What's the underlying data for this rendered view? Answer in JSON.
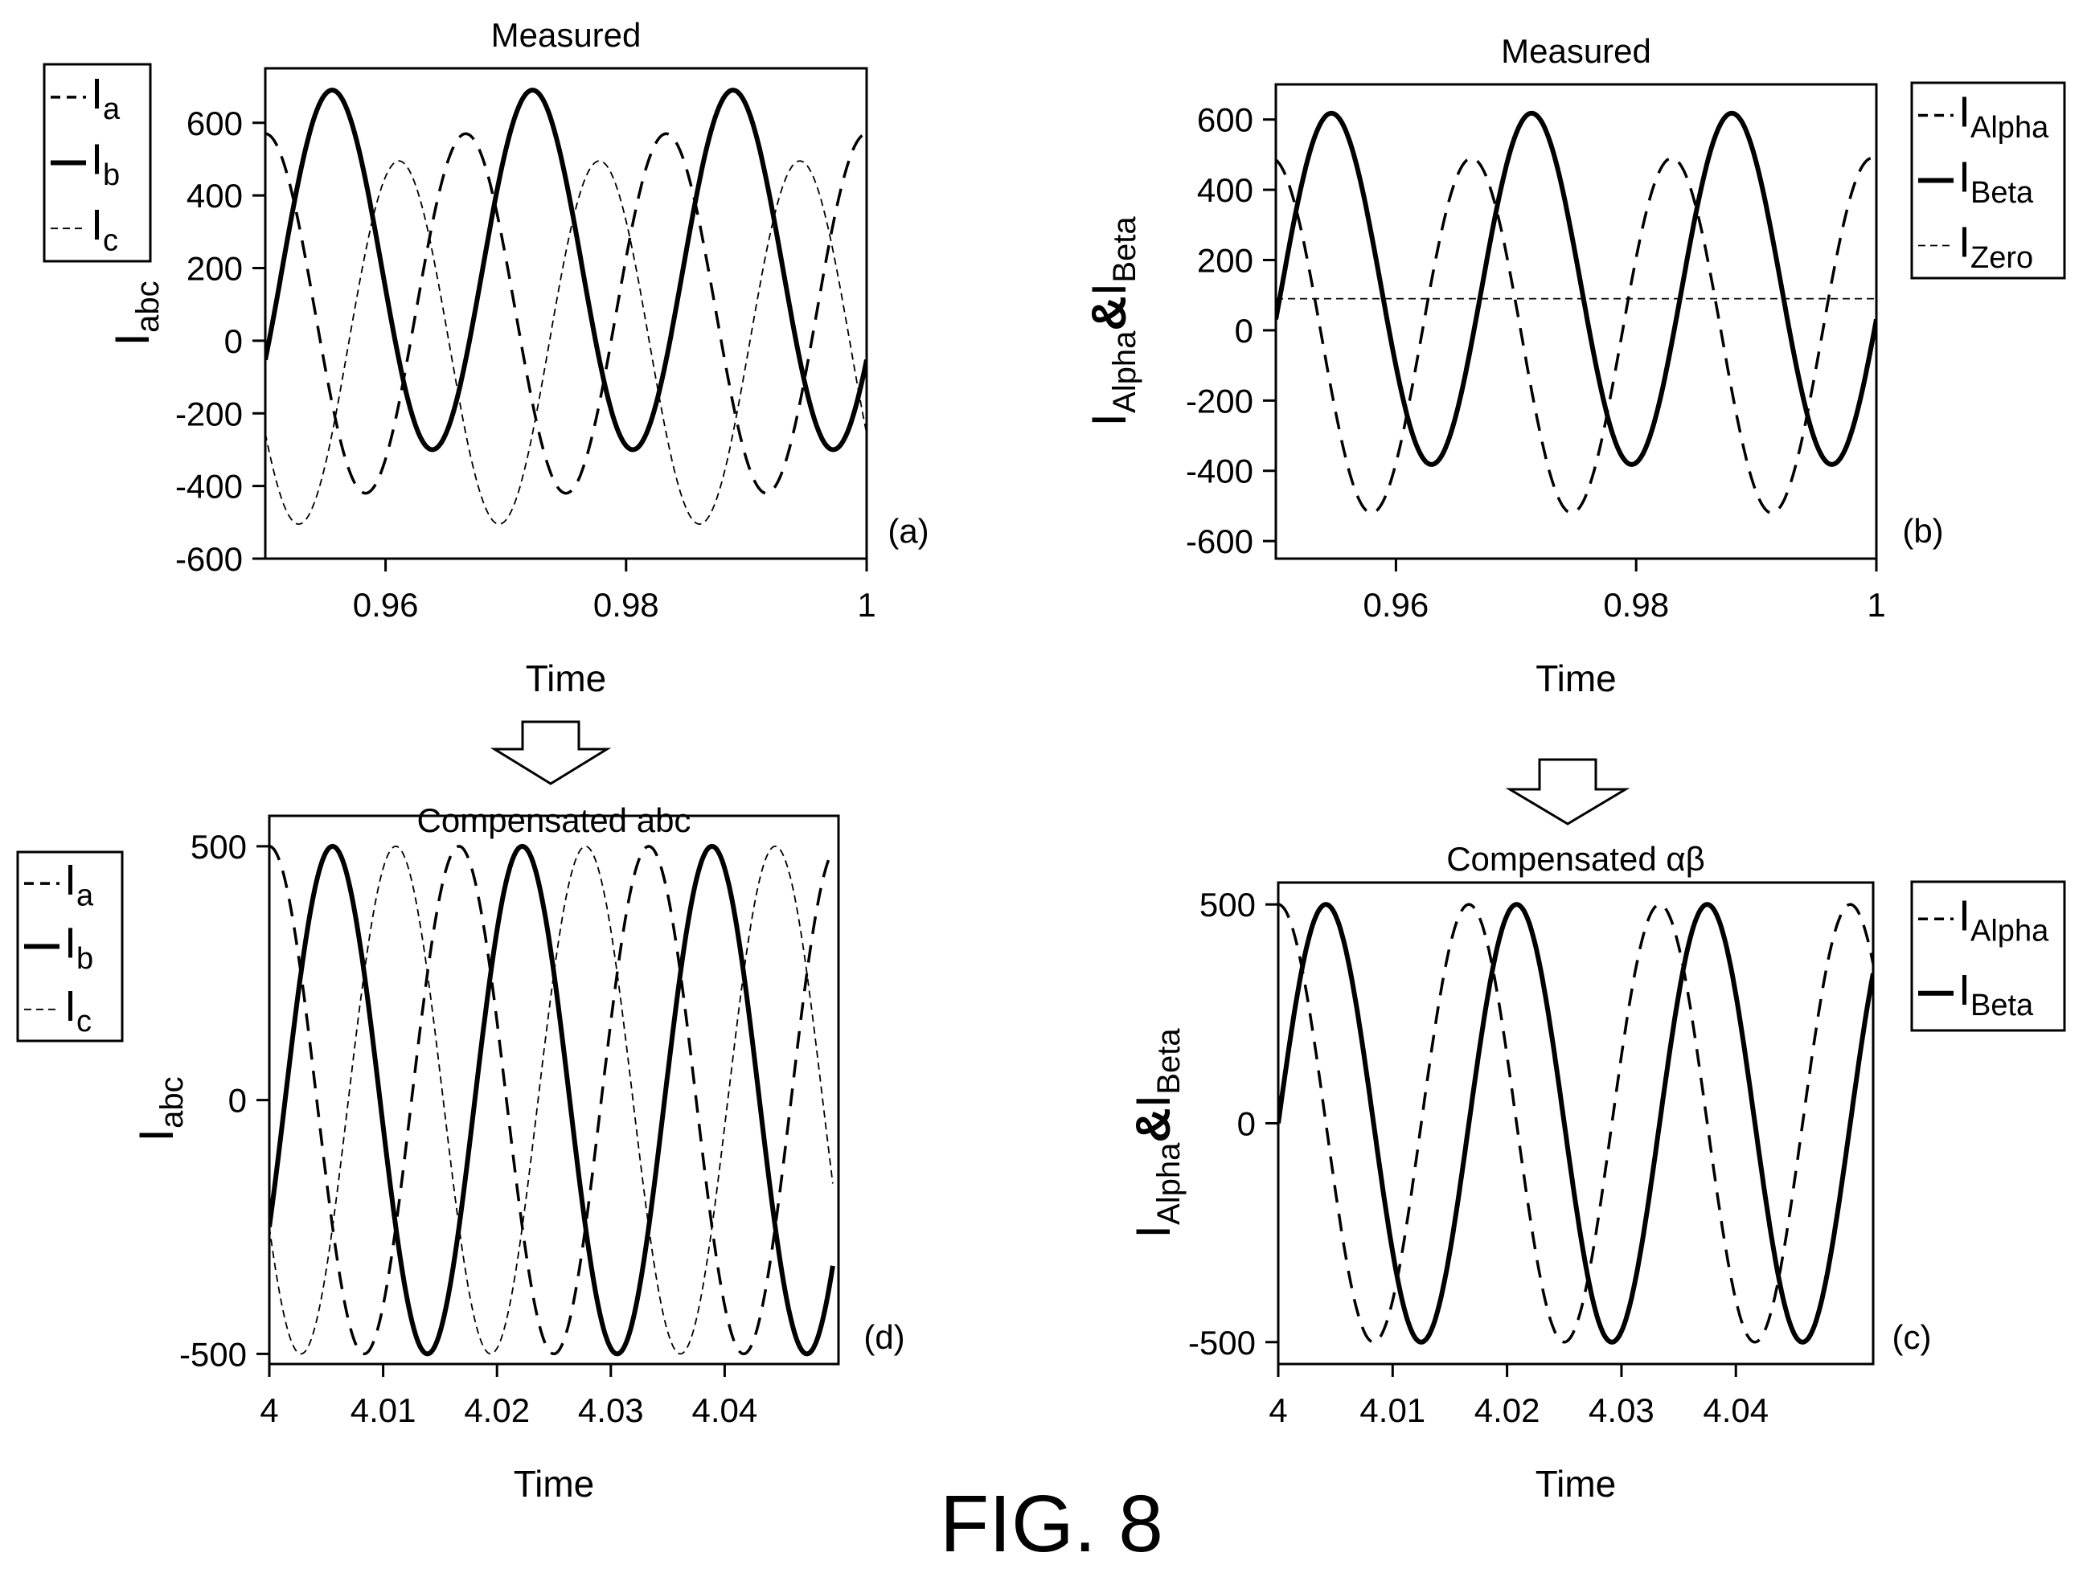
{
  "figure": {
    "caption": "FIG. 8"
  },
  "chart_data": [
    {
      "id": "a",
      "type": "line",
      "panel_label": "(a)",
      "title": "Measured",
      "xlabel": "Time",
      "ylabel": {
        "base": "I",
        "sub": "abc"
      },
      "xlim": [
        0.95,
        1.0
      ],
      "ylim": [
        -600,
        750
      ],
      "xticks": [
        0.96,
        0.98,
        1
      ],
      "xtick_labels": [
        "0.96",
        "0.98",
        "1"
      ],
      "yticks": [
        -600,
        -400,
        -200,
        0,
        200,
        400,
        600
      ],
      "ytick_labels": [
        "-600",
        "-400",
        "-200",
        "0",
        "200",
        "400",
        "600"
      ],
      "grid": false,
      "legend_position": "outside-left",
      "frequency_hz": 60,
      "series": [
        {
          "name": {
            "base": "I",
            "sub": "a"
          },
          "style": "dashed",
          "amplitude": 495,
          "offset": 75,
          "phase_deg": 0,
          "x_start": 0.95,
          "x_end": 1.0
        },
        {
          "name": {
            "base": "I",
            "sub": "b"
          },
          "style": "solid",
          "amplitude": 495,
          "offset": 195,
          "phase_deg": -120,
          "x_start": 0.95,
          "x_end": 1.0
        },
        {
          "name": {
            "base": "I",
            "sub": "c"
          },
          "style": "thin-dashed",
          "amplitude": 500,
          "offset": -5,
          "phase_deg": 120,
          "x_start": 0.95,
          "x_end": 1.0
        }
      ]
    },
    {
      "id": "b",
      "type": "line",
      "panel_label": "(b)",
      "title": "Measured",
      "xlabel": "Time",
      "ylabel": {
        "base1": "I",
        "sub1": "Alpha",
        "amp": "&",
        "base2": "I",
        "sub2": "Beta"
      },
      "xlim": [
        0.95,
        1.0
      ],
      "ylim": [
        -650,
        700
      ],
      "xticks": [
        0.96,
        0.98,
        1
      ],
      "xtick_labels": [
        "0.96",
        "0.98",
        "1"
      ],
      "yticks": [
        -600,
        -400,
        -200,
        0,
        200,
        400,
        600
      ],
      "ytick_labels": [
        "-600",
        "-400",
        "-200",
        "0",
        "200",
        "400",
        "600"
      ],
      "grid": false,
      "legend_position": "outside-right",
      "frequency_hz": 60,
      "series": [
        {
          "name": {
            "base": "I",
            "sub": "Alpha"
          },
          "style": "dashed",
          "amplitude": 505,
          "offset": -15,
          "phase_deg": 8,
          "x_start": 0.95,
          "x_end": 1.0
        },
        {
          "name": {
            "base": "I",
            "sub": "Beta"
          },
          "style": "solid",
          "amplitude": 500,
          "offset": 118,
          "phase_deg": -100,
          "x_start": 0.95,
          "x_end": 1.0
        },
        {
          "name": {
            "base": "I",
            "sub": "Zero"
          },
          "style": "thin-dashed",
          "amplitude": 0,
          "offset": 90,
          "phase_deg": 0,
          "x_start": 0.95,
          "x_end": 1.0
        }
      ]
    },
    {
      "id": "d",
      "type": "line",
      "panel_label": "(d)",
      "title": "Compensated abc",
      "xlabel": "Time",
      "ylabel": {
        "base": "I",
        "sub": "abc"
      },
      "xlim": [
        4.0,
        4.05
      ],
      "ylim": [
        -520,
        560
      ],
      "xticks": [
        4,
        4.01,
        4.02,
        4.03,
        4.04
      ],
      "xtick_labels": [
        "4",
        "4.01",
        "4.02",
        "4.03",
        "4.04"
      ],
      "yticks": [
        -500,
        0,
        500
      ],
      "ytick_labels": [
        "-500",
        "0",
        "500"
      ],
      "grid": false,
      "legend_position": "outside-left",
      "frequency_hz": 60,
      "series": [
        {
          "name": {
            "base": "I",
            "sub": "a"
          },
          "style": "dashed",
          "amplitude": 500,
          "offset": 0,
          "phase_deg": 0,
          "x_start": 4.0,
          "x_end": 4.0495
        },
        {
          "name": {
            "base": "I",
            "sub": "b"
          },
          "style": "solid",
          "amplitude": 500,
          "offset": 0,
          "phase_deg": -120,
          "x_start": 4.0,
          "x_end": 4.0495
        },
        {
          "name": {
            "base": "I",
            "sub": "c"
          },
          "style": "thin-dashed",
          "amplitude": 500,
          "offset": 0,
          "phase_deg": 120,
          "x_start": 4.0,
          "x_end": 4.0495
        }
      ]
    },
    {
      "id": "c",
      "type": "line",
      "panel_label": "(c)",
      "title": "Compensated αβ",
      "xlabel": "Time",
      "ylabel": {
        "base1": "I",
        "sub1": "Alpha",
        "amp": "&",
        "base2": "I",
        "sub2": "Beta"
      },
      "xlim": [
        4.0,
        4.052
      ],
      "ylim": [
        -550,
        550
      ],
      "xticks": [
        4,
        4.01,
        4.02,
        4.03,
        4.04
      ],
      "xtick_labels": [
        "4",
        "4.01",
        "4.02",
        "4.03",
        "4.04"
      ],
      "yticks": [
        -500,
        0,
        500
      ],
      "ytick_labels": [
        "-500",
        "0",
        "500"
      ],
      "grid": false,
      "legend_position": "outside-right",
      "frequency_hz": 60,
      "series": [
        {
          "name": {
            "base": "I",
            "sub": "Alpha"
          },
          "style": "dashed",
          "amplitude": 500,
          "offset": 0,
          "phase_deg": 0,
          "x_start": 4.0,
          "x_end": 4.052
        },
        {
          "name": {
            "base": "I",
            "sub": "Beta"
          },
          "style": "solid",
          "amplitude": 500,
          "offset": 0,
          "phase_deg": -90,
          "x_start": 4.0,
          "x_end": 4.052
        }
      ]
    }
  ]
}
